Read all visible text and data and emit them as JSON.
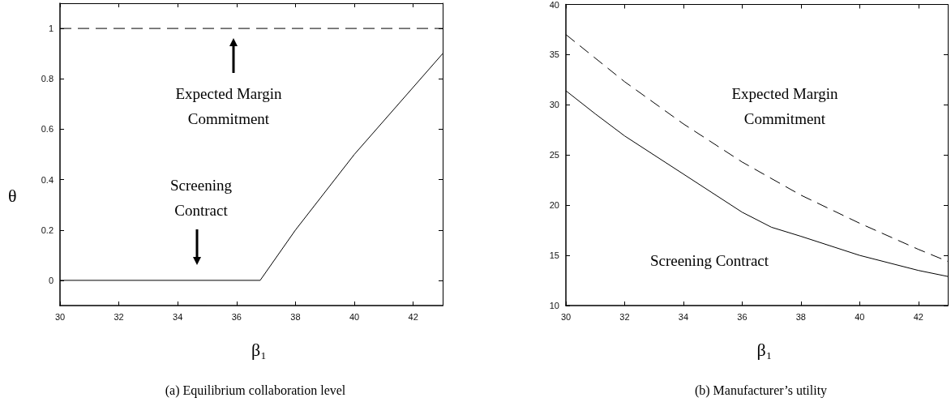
{
  "chart_data": [
    {
      "type": "line",
      "title": "(a) Equilibrium collaboration level",
      "xlabel": "β₁",
      "ylabel": "θ",
      "xlim": [
        30,
        43
      ],
      "xticks": [
        30,
        32,
        34,
        36,
        38,
        40,
        42
      ],
      "ylim": [
        -0.1,
        1.1
      ],
      "yticks": [
        0,
        0.2,
        0.4,
        0.6,
        0.8,
        1
      ],
      "grid": false,
      "marker": "none",
      "series": [
        {
          "color": "#000000",
          "line_style": "dashed",
          "x": [
            30,
            43
          ],
          "values": [
            1,
            1
          ]
        },
        {
          "color": "#000000",
          "line_style": "solid",
          "x": [
            30,
            36.8,
            38,
            40,
            43
          ],
          "values": [
            0,
            0,
            0.2,
            0.5,
            0.9
          ]
        }
      ],
      "annotations": [
        "Expected Margin\nCommitment",
        "Screening\nContract"
      ]
    },
    {
      "type": "line",
      "title": "(b) Manufacturer’s utility",
      "xlabel": "β₁",
      "xlim": [
        30,
        43
      ],
      "xticks": [
        30,
        32,
        34,
        36,
        38,
        40,
        42
      ],
      "ylim": [
        10,
        40
      ],
      "yticks": [
        10,
        15,
        20,
        25,
        30,
        35,
        40
      ],
      "grid": false,
      "marker": "none",
      "series": [
        {
          "color": "#000000",
          "line_style": "dashed",
          "x": [
            30,
            32,
            34,
            36,
            38,
            40,
            42,
            43
          ],
          "values": [
            37,
            32.3,
            28.1,
            24.3,
            21.0,
            18.2,
            15.6,
            14.4
          ]
        },
        {
          "color": "#000000",
          "line_style": "solid",
          "x": [
            30,
            31,
            32,
            34,
            36,
            37,
            38,
            40,
            42,
            43
          ],
          "values": [
            31.4,
            29.1,
            26.9,
            23.1,
            19.3,
            17.8,
            16.9,
            15.0,
            13.5,
            12.9
          ]
        }
      ],
      "annotations": [
        "Expected Margin\nCommitment",
        "Screening Contract"
      ]
    }
  ]
}
